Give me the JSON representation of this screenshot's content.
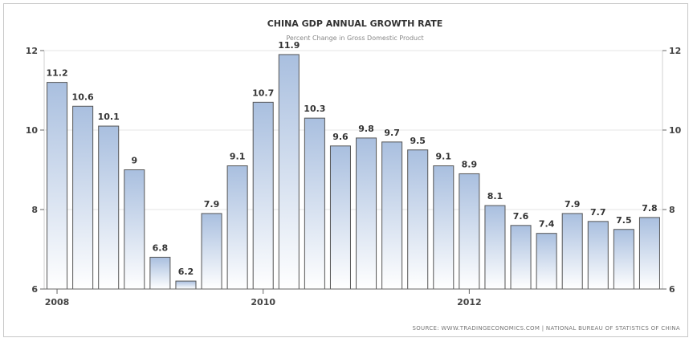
{
  "chart_data": {
    "type": "bar",
    "title": "CHINA GDP ANNUAL GROWTH RATE",
    "subtitle": "Percent Change in Gross Domestic Product",
    "source": "SOURCE: WWW.TRADINGECONOMICS.COM  |  NATIONAL BUREAU OF STATISTICS OF CHINA",
    "x_tick_labels": [
      {
        "index": 0,
        "label": "2008"
      },
      {
        "index": 8,
        "label": "2010"
      },
      {
        "index": 16,
        "label": "2012"
      }
    ],
    "values": [
      11.2,
      10.6,
      10.1,
      9,
      6.8,
      6.2,
      7.9,
      9.1,
      10.7,
      11.9,
      10.3,
      9.6,
      9.8,
      9.7,
      9.5,
      9.1,
      8.9,
      8.1,
      7.6,
      7.4,
      7.9,
      7.7,
      7.5,
      7.8
    ],
    "value_labels": [
      "11.2",
      "10.6",
      "10.1",
      "9",
      "6.8",
      "6.2",
      "7.9",
      "9.1",
      "10.7",
      "11.9",
      "10.3",
      "9.6",
      "9.8",
      "9.7",
      "9.5",
      "9.1",
      "8.9",
      "8.1",
      "7.6",
      "7.4",
      "7.9",
      "7.7",
      "7.5",
      "7.8"
    ],
    "ylim": [
      6,
      12
    ],
    "y_ticks": [
      6,
      8,
      10,
      12
    ],
    "grid": true,
    "colors": {
      "bar_top": "#a9bfdf",
      "bar_bottom": "#ffffff",
      "bar_stroke": "#555555",
      "grid": "#e6e6e6"
    }
  }
}
